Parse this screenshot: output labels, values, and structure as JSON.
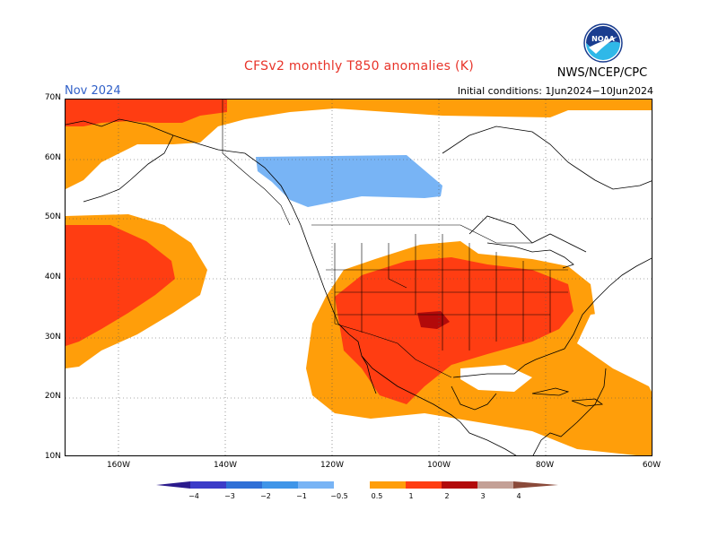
{
  "title": "CFSv2 monthly T850 anomalies (K)",
  "agency": "NWS/NCEP/CPC",
  "logo_text": "NOAA",
  "month": "Nov 2024",
  "initial_conditions": "Initial conditions: 1Jun2024−10Jun2024",
  "lat_labels": [
    "70N",
    "60N",
    "50N",
    "40N",
    "30N",
    "20N",
    "10N"
  ],
  "lon_labels": [
    "160W",
    "140W",
    "120W",
    "100W",
    "80W",
    "60W"
  ],
  "legend": {
    "ticks": [
      "−4",
      "−3",
      "−2",
      "−1",
      "−0.5",
      "0.5",
      "1",
      "2",
      "3",
      "4"
    ],
    "colors": {
      "lt_-4": "#2a1a8c",
      "-4_-3": "#3b3bc8",
      "-3_-2": "#2f6fd6",
      "-2_-1": "#3f95e8",
      "-1_-0.5": "#78b4f5",
      "neutral": "#ffffff",
      "0.5_1": "#ff9e0a",
      "1_2": "#ff3d12",
      "2_3": "#b20a0a",
      "3_4": "#c4a096",
      "gt_4": "#8a4a3a"
    }
  }
}
